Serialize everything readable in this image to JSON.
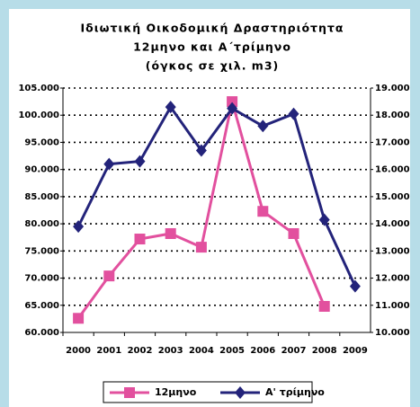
{
  "chart_data": {
    "type": "line",
    "title": [
      "Ιδιωτική Οικοδομική Δραστηριότητα",
      "12μηνο και Α΄τρίμηνο",
      "(όγκος σε χιλ. m3)"
    ],
    "categories": [
      "2000",
      "2001",
      "2002",
      "2003",
      "2004",
      "2005",
      "2006",
      "2007",
      "2008",
      "2009"
    ],
    "series": [
      {
        "name": "12μηνο",
        "color": "#e2509e",
        "marker": "square",
        "axis": "y",
        "values": [
          62600,
          70400,
          77200,
          78200,
          75700,
          102500,
          82300,
          78200,
          64800,
          null
        ]
      },
      {
        "name": "Α' τρίμηνο",
        "color": "#23237a",
        "marker": "diamond",
        "axis": "y2",
        "values": [
          13900,
          16200,
          16300,
          18300,
          16700,
          18250,
          17600,
          18050,
          14150,
          11700
        ]
      }
    ],
    "ylim": [
      60000,
      105000
    ],
    "yticks": [
      {
        "value": 60000,
        "label": "60.000"
      },
      {
        "value": 65000,
        "label": "65.000"
      },
      {
        "value": 70000,
        "label": "70.000"
      },
      {
        "value": 75000,
        "label": "75.000"
      },
      {
        "value": 80000,
        "label": "80.000"
      },
      {
        "value": 85000,
        "label": "85.000"
      },
      {
        "value": 90000,
        "label": "90.000"
      },
      {
        "value": 95000,
        "label": "95.000"
      },
      {
        "value": 100000,
        "label": "100.000"
      },
      {
        "value": 105000,
        "label": "105.000"
      }
    ],
    "y2lim": [
      10000,
      19000
    ],
    "y2ticks": [
      {
        "value": 10000,
        "label": "10.000"
      },
      {
        "value": 11000,
        "label": "11.000"
      },
      {
        "value": 12000,
        "label": "12.000"
      },
      {
        "value": 13000,
        "label": "13.000"
      },
      {
        "value": 14000,
        "label": "14.000"
      },
      {
        "value": 15000,
        "label": "15.000"
      },
      {
        "value": 16000,
        "label": "16.000"
      },
      {
        "value": 17000,
        "label": "17.000"
      },
      {
        "value": 18000,
        "label": "18.000"
      },
      {
        "value": 19000,
        "label": "19.000"
      }
    ],
    "grid": true,
    "legend": "bottom"
  }
}
